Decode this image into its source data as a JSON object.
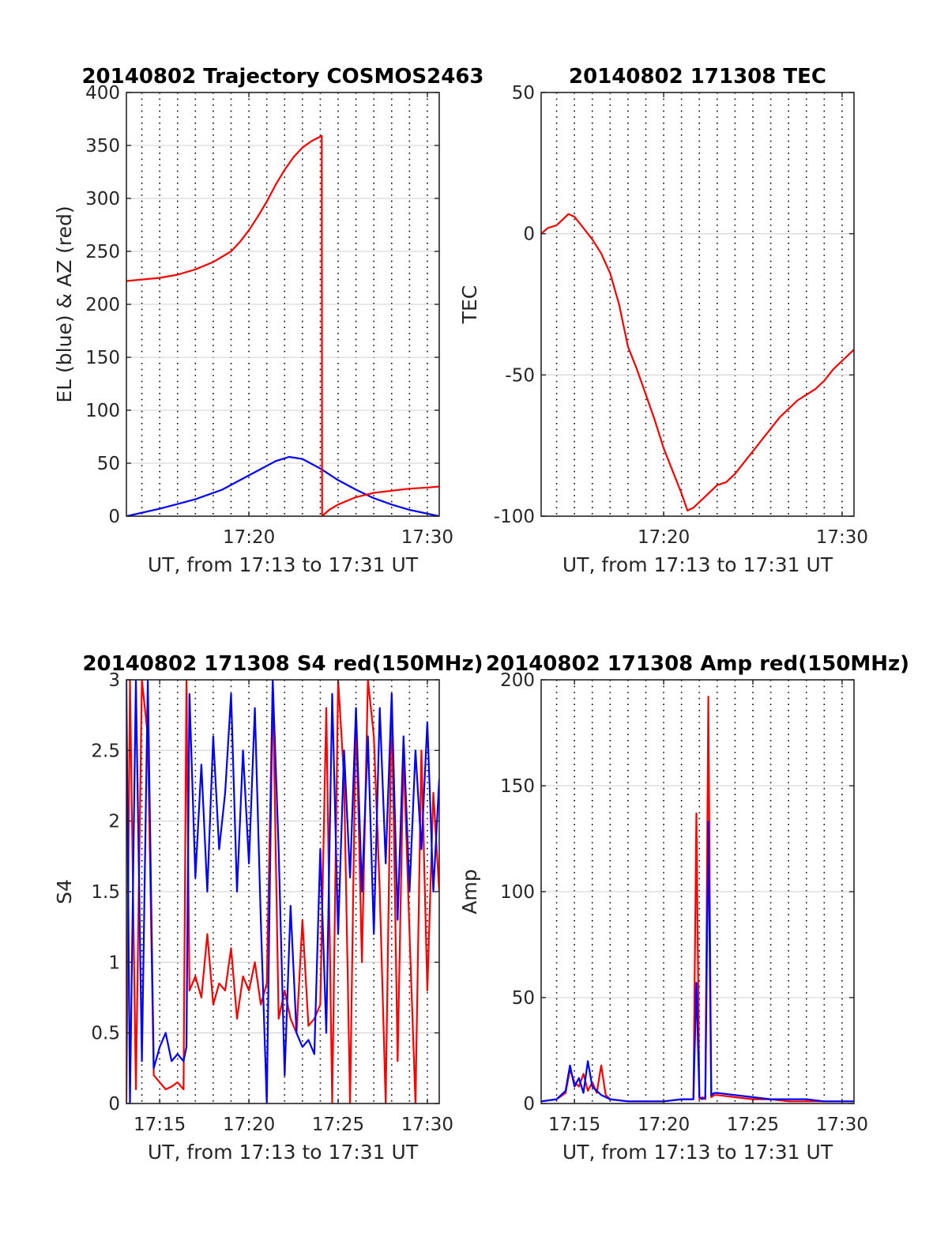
{
  "colors": {
    "el": "#0000ff",
    "az": "#ff0000",
    "tec": "#ff0000",
    "s4_red": "#ff0000",
    "s4_blue": "#0000ff",
    "amp_red": "#ff0000",
    "amp_blue": "#0000ff",
    "grid_major": "#d9d9d9",
    "grid_minor": "#000000",
    "axis": "#262626"
  },
  "chart_data": [
    {
      "type": "line",
      "title": "20140802 Trajectory COSMOS2463",
      "xlabel": "UT, from 17:13 to 17:31 UT",
      "ylabel": "EL (blue) & AZ (red)",
      "xlim": [
        "17:13:08",
        "17:30:40"
      ],
      "ylim": [
        0,
        400
      ],
      "xticks": [
        "17:20",
        "17:30"
      ],
      "yticks": [
        0,
        50,
        100,
        150,
        200,
        250,
        300,
        350,
        400
      ],
      "grid": true,
      "series": [
        {
          "key": "el",
          "x": [
            "17:13:08",
            "17:15:00",
            "17:17:00",
            "17:18:30",
            "17:19:30",
            "17:20:30",
            "17:21:30",
            "17:22:15",
            "17:23:00",
            "17:24:00",
            "17:25:00",
            "17:26:00",
            "17:27:00",
            "17:28:00",
            "17:29:00",
            "17:30:40"
          ],
          "y": [
            0,
            7,
            16,
            25,
            34,
            43,
            52,
            56,
            54,
            45,
            34,
            25,
            17,
            11,
            6,
            0
          ]
        },
        {
          "key": "az",
          "x": [
            "17:13:08",
            "17:15:00",
            "17:16:00",
            "17:17:00",
            "17:18:00",
            "17:19:00",
            "17:19:30",
            "17:20:00",
            "17:20:30",
            "17:21:00",
            "17:21:30",
            "17:22:00",
            "17:22:30",
            "17:23:00",
            "17:23:30",
            "17:24:05",
            "17:24:06",
            "17:24:30",
            "17:25:00",
            "17:26:00",
            "17:27:00",
            "17:28:00",
            "17:29:00",
            "17:30:00",
            "17:30:40"
          ],
          "y": [
            222,
            225,
            228,
            233,
            240,
            250,
            259,
            270,
            283,
            297,
            313,
            327,
            339,
            348,
            354,
            359,
            0,
            6,
            11,
            18,
            22,
            24,
            26,
            27,
            28
          ]
        }
      ]
    },
    {
      "type": "line",
      "title": "20140802 171308 TEC",
      "xlabel": "UT, from 17:13 to 17:31 UT",
      "ylabel": "TEC",
      "xlim": [
        "17:13:08",
        "17:30:40"
      ],
      "ylim": [
        -100,
        50
      ],
      "xticks": [
        "17:20",
        "17:30"
      ],
      "yticks": [
        -100,
        -50,
        0,
        50
      ],
      "grid": true,
      "series": [
        {
          "key": "tec",
          "x": [
            "17:13:08",
            "17:13:30",
            "17:14:00",
            "17:14:20",
            "17:14:40",
            "17:15:00",
            "17:15:30",
            "17:16:00",
            "17:16:30",
            "17:17:00",
            "17:17:30",
            "17:18:00",
            "17:18:30",
            "17:19:00",
            "17:19:30",
            "17:20:00",
            "17:20:30",
            "17:21:00",
            "17:21:20",
            "17:21:40",
            "17:22:00",
            "17:22:30",
            "17:23:00",
            "17:23:30",
            "17:24:00",
            "17:24:30",
            "17:25:00",
            "17:25:30",
            "17:26:00",
            "17:26:30",
            "17:27:00",
            "17:27:30",
            "17:28:00",
            "17:28:30",
            "17:29:00",
            "17:29:30",
            "17:30:00",
            "17:30:40"
          ],
          "y": [
            0,
            2,
            3,
            5,
            7,
            6,
            2,
            -2,
            -7,
            -14,
            -25,
            -40,
            -48,
            -57,
            -66,
            -76,
            -84,
            -92,
            -98,
            -97,
            -95,
            -92,
            -89,
            -88,
            -85,
            -81,
            -77,
            -73,
            -69,
            -65,
            -62,
            -59,
            -57,
            -55,
            -52,
            -48,
            -45,
            -41
          ]
        }
      ]
    },
    {
      "type": "line",
      "title": "20140802 171308 S4 red(150MHz)",
      "xlabel": "UT, from 17:13 to 17:31 UT",
      "ylabel": "S4",
      "xlim": [
        "17:13:08",
        "17:30:40"
      ],
      "ylim": [
        0,
        3
      ],
      "xticks": [
        "17:15",
        "17:20",
        "17:25",
        "17:30"
      ],
      "yticks": [
        0,
        0.5,
        1,
        1.5,
        2,
        2.5,
        3
      ],
      "grid": true,
      "series": [
        {
          "key": "s4_red",
          "x": [
            "17:13:08",
            "17:13:20",
            "17:13:40",
            "17:14:00",
            "17:14:20",
            "17:14:40",
            "17:15:00",
            "17:15:20",
            "17:15:40",
            "17:16:00",
            "17:16:20",
            "17:16:30",
            "17:16:40",
            "17:17:00",
            "17:17:20",
            "17:17:40",
            "17:18:00",
            "17:18:20",
            "17:18:40",
            "17:19:00",
            "17:19:20",
            "17:19:40",
            "17:20:00",
            "17:20:20",
            "17:20:40",
            "17:21:00",
            "17:21:20",
            "17:21:40",
            "17:22:00",
            "17:22:20",
            "17:22:40",
            "17:23:00",
            "17:23:20",
            "17:23:40",
            "17:24:00",
            "17:24:20",
            "17:24:40",
            "17:25:00",
            "17:25:20",
            "17:25:40",
            "17:26:00",
            "17:26:20",
            "17:26:40",
            "17:27:00",
            "17:27:20",
            "17:27:40",
            "17:28:00",
            "17:28:20",
            "17:28:40",
            "17:29:00",
            "17:29:20",
            "17:29:40",
            "17:30:00",
            "17:30:20",
            "17:30:40"
          ],
          "y": [
            0,
            3,
            0.1,
            3,
            2.6,
            0.2,
            0.15,
            0.1,
            0.12,
            0.15,
            0.1,
            3,
            0.8,
            0.9,
            0.75,
            1.2,
            0.7,
            0.85,
            0.8,
            1.1,
            0.6,
            0.9,
            0.8,
            1.0,
            0.7,
            0.85,
            3,
            0.6,
            0.8,
            0.6,
            0.5,
            1.3,
            0.55,
            0.6,
            0.7,
            2.8,
            0,
            3,
            2.3,
            0,
            2.8,
            1.0,
            3,
            2.6,
            1.5,
            0,
            2.9,
            0.3,
            2.5,
            1.2,
            0,
            2.5,
            0.8,
            2.2,
            1.5
          ]
        },
        {
          "key": "s4_blue",
          "x": [
            "17:13:08",
            "17:13:20",
            "17:13:40",
            "17:14:00",
            "17:14:20",
            "17:14:40",
            "17:15:00",
            "17:15:20",
            "17:15:40",
            "17:16:00",
            "17:16:20",
            "17:16:30",
            "17:16:40",
            "17:17:00",
            "17:17:20",
            "17:17:40",
            "17:18:00",
            "17:18:20",
            "17:18:40",
            "17:19:00",
            "17:19:20",
            "17:19:40",
            "17:20:00",
            "17:20:20",
            "17:20:40",
            "17:21:00",
            "17:21:20",
            "17:21:40",
            "17:22:00",
            "17:22:20",
            "17:22:40",
            "17:23:00",
            "17:23:20",
            "17:23:40",
            "17:24:00",
            "17:24:20",
            "17:24:40",
            "17:25:00",
            "17:25:20",
            "17:25:40",
            "17:26:00",
            "17:26:20",
            "17:26:40",
            "17:27:00",
            "17:27:20",
            "17:27:40",
            "17:28:00",
            "17:28:20",
            "17:28:40",
            "17:29:00",
            "17:29:20",
            "17:29:40",
            "17:30:00",
            "17:30:20",
            "17:30:40"
          ],
          "y": [
            3,
            0,
            3,
            0.3,
            3,
            0.25,
            0.4,
            0.5,
            0.3,
            0.35,
            0.3,
            0.4,
            2.9,
            1.6,
            2.4,
            1.5,
            2.6,
            1.8,
            2.2,
            2.9,
            1.5,
            2.5,
            1.7,
            2.8,
            1.3,
            0,
            3,
            1.8,
            0.2,
            1.4,
            0.5,
            0.4,
            0.45,
            0.35,
            1.8,
            0.5,
            2.9,
            1.2,
            2.5,
            1.6,
            2.8,
            1.5,
            2.6,
            1.2,
            2.8,
            1.7,
            2.9,
            1.3,
            2.6,
            1.5,
            2.5,
            1.8,
            2.7,
            1.5,
            2.3
          ]
        }
      ]
    },
    {
      "type": "line",
      "title": "20140802 171308 Amp red(150MHz)",
      "xlabel": "UT, from 17:13 to 17:31 UT",
      "ylabel": "Amp",
      "xlim": [
        "17:13:08",
        "17:30:40"
      ],
      "ylim": [
        0,
        200
      ],
      "xticks": [
        "17:15",
        "17:20",
        "17:25",
        "17:30"
      ],
      "yticks": [
        0,
        50,
        100,
        150,
        200
      ],
      "grid": true,
      "series": [
        {
          "key": "amp_red",
          "x": [
            "17:13:08",
            "17:14:00",
            "17:14:30",
            "17:14:45",
            "17:15:00",
            "17:15:15",
            "17:15:30",
            "17:15:45",
            "17:16:00",
            "17:16:15",
            "17:16:30",
            "17:16:45",
            "17:17:00",
            "17:18:00",
            "17:19:00",
            "17:20:00",
            "17:21:00",
            "17:21:40",
            "17:21:50",
            "17:22:00",
            "17:22:10",
            "17:22:20",
            "17:22:30",
            "17:22:40",
            "17:22:50",
            "17:23:00",
            "17:24:00",
            "17:25:00",
            "17:26:00",
            "17:27:00",
            "17:28:00",
            "17:29:00",
            "17:30:00",
            "17:30:40"
          ],
          "y": [
            1,
            2,
            5,
            16,
            10,
            8,
            14,
            6,
            10,
            5,
            18,
            4,
            2,
            1,
            1,
            1,
            2,
            2,
            137,
            2,
            3,
            2,
            192,
            3,
            4,
            4,
            3,
            2,
            2,
            1,
            1,
            1,
            1,
            1
          ]
        },
        {
          "key": "amp_blue",
          "x": [
            "17:13:08",
            "17:14:00",
            "17:14:30",
            "17:14:45",
            "17:15:00",
            "17:15:15",
            "17:15:30",
            "17:15:45",
            "17:16:00",
            "17:16:15",
            "17:16:30",
            "17:16:45",
            "17:17:00",
            "17:18:00",
            "17:19:00",
            "17:20:00",
            "17:21:00",
            "17:21:40",
            "17:21:50",
            "17:22:00",
            "17:22:10",
            "17:22:20",
            "17:22:30",
            "17:22:40",
            "17:22:50",
            "17:23:00",
            "17:24:00",
            "17:25:00",
            "17:26:00",
            "17:27:00",
            "17:28:00",
            "17:29:00",
            "17:30:00",
            "17:30:40"
          ],
          "y": [
            1,
            2,
            6,
            18,
            8,
            12,
            5,
            20,
            8,
            6,
            4,
            3,
            2,
            1,
            1,
            1,
            2,
            2,
            57,
            3,
            2,
            3,
            133,
            4,
            5,
            5,
            4,
            3,
            2,
            2,
            2,
            1,
            1,
            1
          ]
        }
      ]
    }
  ]
}
